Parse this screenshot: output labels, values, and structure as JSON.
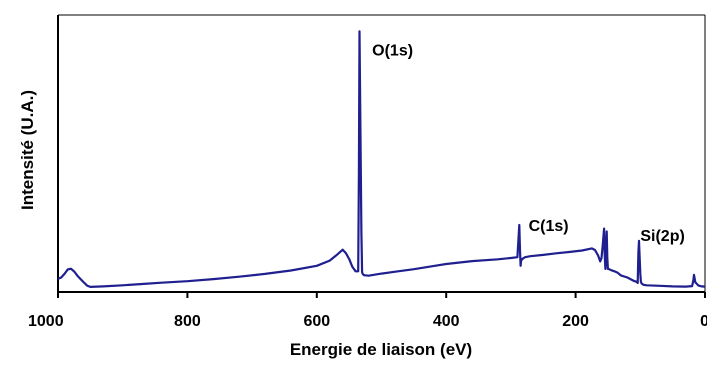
{
  "chart_data": {
    "type": "line",
    "title": "",
    "xlabel": "Energie de liaison (eV)",
    "ylabel": "Intensité (U.A.)",
    "x_reversed": true,
    "xlim": [
      1000,
      0
    ],
    "ylim": [
      0,
      100
    ],
    "x_ticks": [
      1000,
      800,
      600,
      400,
      200,
      0
    ],
    "x_tick_labels": [
      "1000",
      "800",
      "600",
      "400",
      "200",
      "0"
    ],
    "y_ticks_shown": false,
    "grid": false,
    "legend": "none",
    "line_color": "#1f1f8f",
    "series": [
      {
        "name": "",
        "x": [
          1000,
          995,
          990,
          985,
          980,
          975,
          970,
          965,
          960,
          955,
          950,
          930,
          900,
          870,
          840,
          800,
          760,
          720,
          680,
          640,
          600,
          580,
          570,
          560,
          555,
          550,
          545,
          540,
          536,
          535,
          534,
          533,
          531,
          530,
          529,
          527,
          520,
          500,
          480,
          450,
          420,
          400,
          360,
          320,
          300,
          290,
          287,
          286,
          285,
          284,
          283,
          281,
          278,
          270,
          250,
          230,
          210,
          190,
          175,
          170,
          165,
          162,
          160,
          158,
          156,
          155,
          154,
          153,
          152,
          151,
          150,
          148,
          145,
          140,
          135,
          130,
          120,
          110,
          106,
          104,
          103,
          102,
          101,
          100,
          99,
          98,
          95,
          90,
          70,
          50,
          30,
          20,
          18,
          17,
          15,
          10,
          5,
          0
        ],
        "y": [
          4.3,
          4.8,
          6.2,
          7.9,
          8.2,
          7.1,
          5.5,
          4.2,
          2.9,
          1.7,
          1.2,
          1.4,
          1.8,
          2.3,
          2.8,
          3.4,
          4.2,
          5.1,
          6.2,
          7.5,
          9.3,
          11.3,
          13.3,
          15.5,
          14.2,
          11.9,
          8.9,
          7.2,
          7.2,
          45,
          99.5,
          75,
          22,
          6.8,
          6.2,
          5.7,
          5.5,
          6.3,
          7.0,
          8.0,
          9.2,
          10.0,
          11.1,
          11.8,
          12.3,
          12.6,
          25.0,
          15.2,
          9.3,
          12.0,
          11.7,
          12.2,
          12.6,
          13.0,
          13.5,
          14.1,
          14.6,
          15.2,
          16.0,
          15.4,
          13.2,
          11.0,
          12.3,
          17.5,
          23.6,
          13.6,
          8.1,
          14.5,
          22.5,
          12.5,
          8.1,
          8.0,
          7.6,
          7.2,
          6.6,
          5.6,
          4.8,
          3.5,
          3.2,
          2.7,
          14.5,
          18.9,
          12.0,
          6.3,
          3.2,
          2.5,
          2.0,
          1.8,
          1.6,
          1.4,
          1.3,
          1.5,
          3.8,
          5.8,
          3.0,
          1.7,
          1.4,
          1.3
        ]
      }
    ],
    "annotations": [
      {
        "text": "O(1s)",
        "x": 533,
        "y": 99.5
      },
      {
        "text": "C(1s)",
        "x": 285,
        "y": 25.0
      },
      {
        "text": "Si(2p)",
        "x": 103,
        "y": 18.9
      }
    ]
  }
}
